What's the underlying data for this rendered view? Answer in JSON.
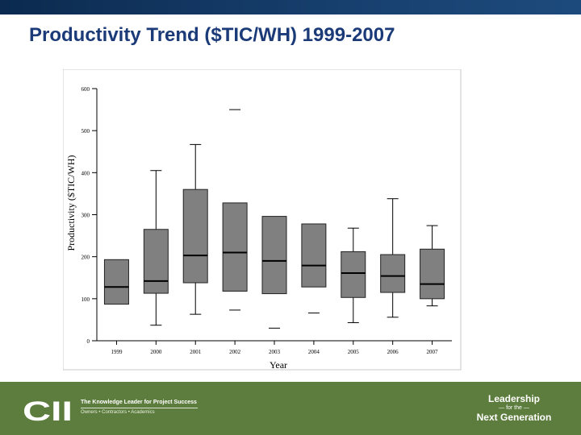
{
  "slide": {
    "title": "Productivity Trend ($TIC/WH) 1999-2007"
  },
  "footer": {
    "logo_text": "CII",
    "tagline": "The Knowledge Leader for Project Success",
    "sub_tagline": "Owners • Contractors • Academics",
    "leadership_line1": "Leadership",
    "leadership_line2": "— for the —",
    "leadership_line3": "Next Generation",
    "color": "#5d7d3e"
  },
  "chart_data": {
    "type": "boxplot",
    "title": "",
    "xlabel": "Year",
    "ylabel": "Productivity ($TIC/WH)",
    "ylim": [
      0,
      600
    ],
    "yticks": [
      0,
      100,
      200,
      300,
      400,
      500,
      600
    ],
    "categories": [
      "1999",
      "2000",
      "2001",
      "2002",
      "2003",
      "2004",
      "2005",
      "2006",
      "2007"
    ],
    "boxes": [
      {
        "q1": 87,
        "median": 128,
        "q3": 193,
        "whisker_low": null,
        "whisker_high": null,
        "outliers": []
      },
      {
        "q1": 113,
        "median": 142,
        "q3": 265,
        "whisker_low": 37,
        "whisker_high": 405,
        "outliers": []
      },
      {
        "q1": 138,
        "median": 203,
        "q3": 360,
        "whisker_low": 63,
        "whisker_high": 467,
        "outliers": []
      },
      {
        "q1": 118,
        "median": 210,
        "q3": 328,
        "whisker_low": null,
        "whisker_high": null,
        "outliers": [
          73,
          550
        ]
      },
      {
        "q1": 112,
        "median": 190,
        "q3": 296,
        "whisker_low": null,
        "whisker_high": null,
        "outliers": [
          30
        ]
      },
      {
        "q1": 128,
        "median": 179,
        "q3": 278,
        "whisker_low": null,
        "whisker_high": null,
        "outliers": [
          66
        ]
      },
      {
        "q1": 103,
        "median": 161,
        "q3": 212,
        "whisker_low": 43,
        "whisker_high": 268,
        "outliers": []
      },
      {
        "q1": 115,
        "median": 154,
        "q3": 205,
        "whisker_low": 56,
        "whisker_high": 338,
        "outliers": []
      },
      {
        "q1": 100,
        "median": 135,
        "q3": 218,
        "whisker_low": 83,
        "whisker_high": 274,
        "outliers": []
      }
    ],
    "box_fill": "#808080",
    "grid": false
  }
}
